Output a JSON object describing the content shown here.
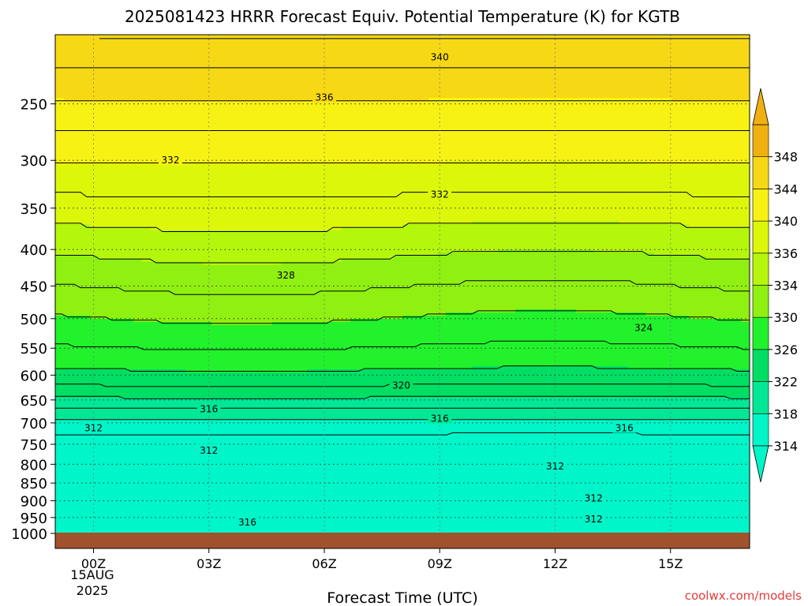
{
  "chart_data": {
    "type": "heatmap",
    "title": "2025081423 HRRR Forecast Equiv. Potential Temperature (K) for KGTB",
    "xlabel": "Forecast Time (UTC)",
    "ylabel": "",
    "x_ticks": [
      "00Z",
      "03Z",
      "06Z",
      "09Z",
      "12Z",
      "15Z"
    ],
    "x_date": [
      "15AUG",
      "2025"
    ],
    "y_ticks": [
      250,
      300,
      350,
      400,
      450,
      500,
      550,
      600,
      650,
      700,
      750,
      800,
      850,
      900,
      950,
      1000
    ],
    "xlim": [
      -0.6,
      17.5
    ],
    "ylim": [
      1000,
      200
    ],
    "y_scale": "log",
    "grid": true,
    "colorbar": {
      "ticks": [
        314,
        318,
        322,
        326,
        330,
        334,
        336,
        340,
        344,
        348
      ],
      "extend": "both",
      "levels": [
        314,
        318,
        322,
        326,
        330,
        334,
        336,
        340,
        344,
        348
      ],
      "colors": [
        "#00f5c8",
        "#00e896",
        "#00df63",
        "#22f22c",
        "#8ff011",
        "#b5f70c",
        "#dcf70a",
        "#f7f214",
        "#f7d814",
        "#f0b010"
      ]
    },
    "contour_labels": [
      {
        "value": "340",
        "x": 9.0,
        "y": 215
      },
      {
        "value": "336",
        "x": 6.0,
        "y": 245
      },
      {
        "value": "332",
        "x": 2.0,
        "y": 300
      },
      {
        "value": "332",
        "x": 9.0,
        "y": 335
      },
      {
        "value": "328",
        "x": 5.0,
        "y": 435
      },
      {
        "value": "324",
        "x": 14.3,
        "y": 515
      },
      {
        "value": "320",
        "x": 8.0,
        "y": 620
      },
      {
        "value": "316",
        "x": 3.0,
        "y": 670
      },
      {
        "value": "316",
        "x": 9.0,
        "y": 690
      },
      {
        "value": "316",
        "x": 13.8,
        "y": 712
      },
      {
        "value": "312",
        "x": 0.0,
        "y": 712
      },
      {
        "value": "312",
        "x": 3.0,
        "y": 765
      },
      {
        "value": "312",
        "x": 12.0,
        "y": 805
      },
      {
        "value": "312",
        "x": 13.0,
        "y": 893
      },
      {
        "value": "312",
        "x": 13.0,
        "y": 955
      },
      {
        "value": "316",
        "x": 4.0,
        "y": 965
      }
    ],
    "surface": {
      "color": "#a0522d",
      "from_pressure": 1000
    }
  },
  "watermark": "coolwx.com/models"
}
